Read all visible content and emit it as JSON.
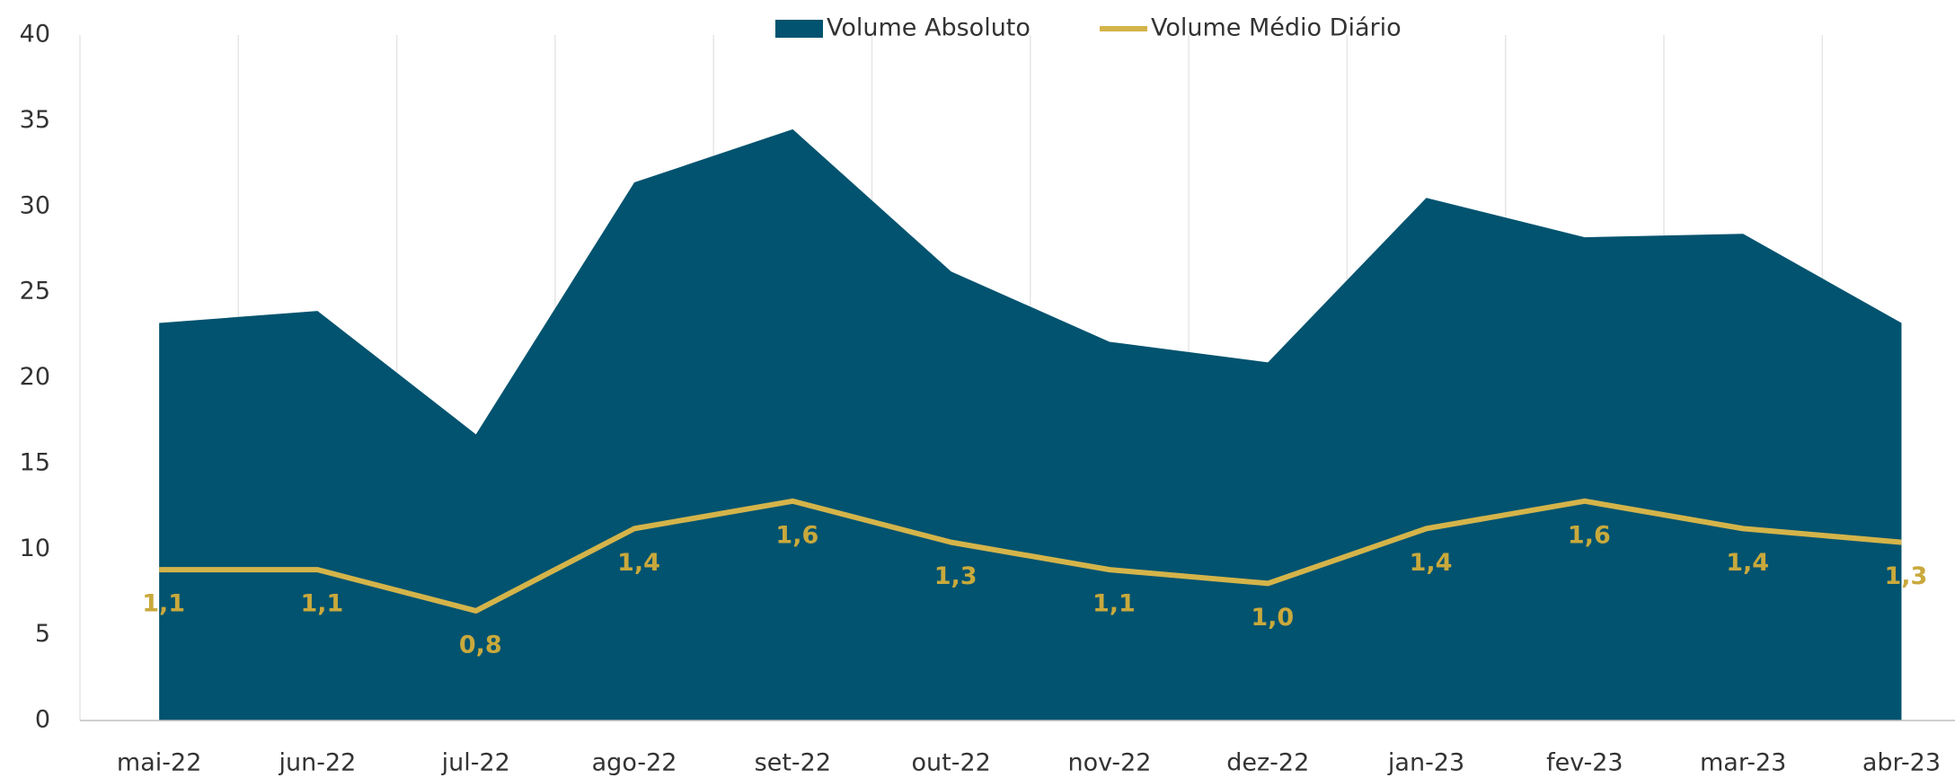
{
  "chart_data": {
    "type": "area",
    "categories": [
      "mai-22",
      "jun-22",
      "jul-22",
      "ago-22",
      "set-22",
      "out-22",
      "nov-22",
      "dez-22",
      "jan-23",
      "fev-23",
      "mar-23",
      "abr-23"
    ],
    "series": [
      {
        "name": "Volume Absoluto",
        "type": "area",
        "color": "#01536f",
        "values": [
          23.2,
          23.9,
          16.7,
          31.4,
          34.5,
          26.2,
          22.1,
          20.9,
          30.5,
          28.2,
          28.4,
          23.2
        ]
      },
      {
        "name": "Volume Médio Diário",
        "type": "line",
        "axis": "y2",
        "color": "#d4b44a",
        "values": [
          1.1,
          1.1,
          0.8,
          1.4,
          1.6,
          1.3,
          1.1,
          1.0,
          1.4,
          1.6,
          1.4,
          1.3
        ],
        "value_labels": [
          "1,1",
          "1,1",
          "0,8",
          "1,4",
          "1,6",
          "1,3",
          "1,1",
          "1,0",
          "1,4",
          "1,6",
          "1,4",
          "1,3"
        ]
      }
    ],
    "ylim": [
      0,
      40
    ],
    "yticks": [
      0,
      5,
      10,
      15,
      20,
      25,
      30,
      35,
      40
    ],
    "y2lim": [
      0,
      5
    ],
    "grid": true,
    "legend": "top"
  }
}
